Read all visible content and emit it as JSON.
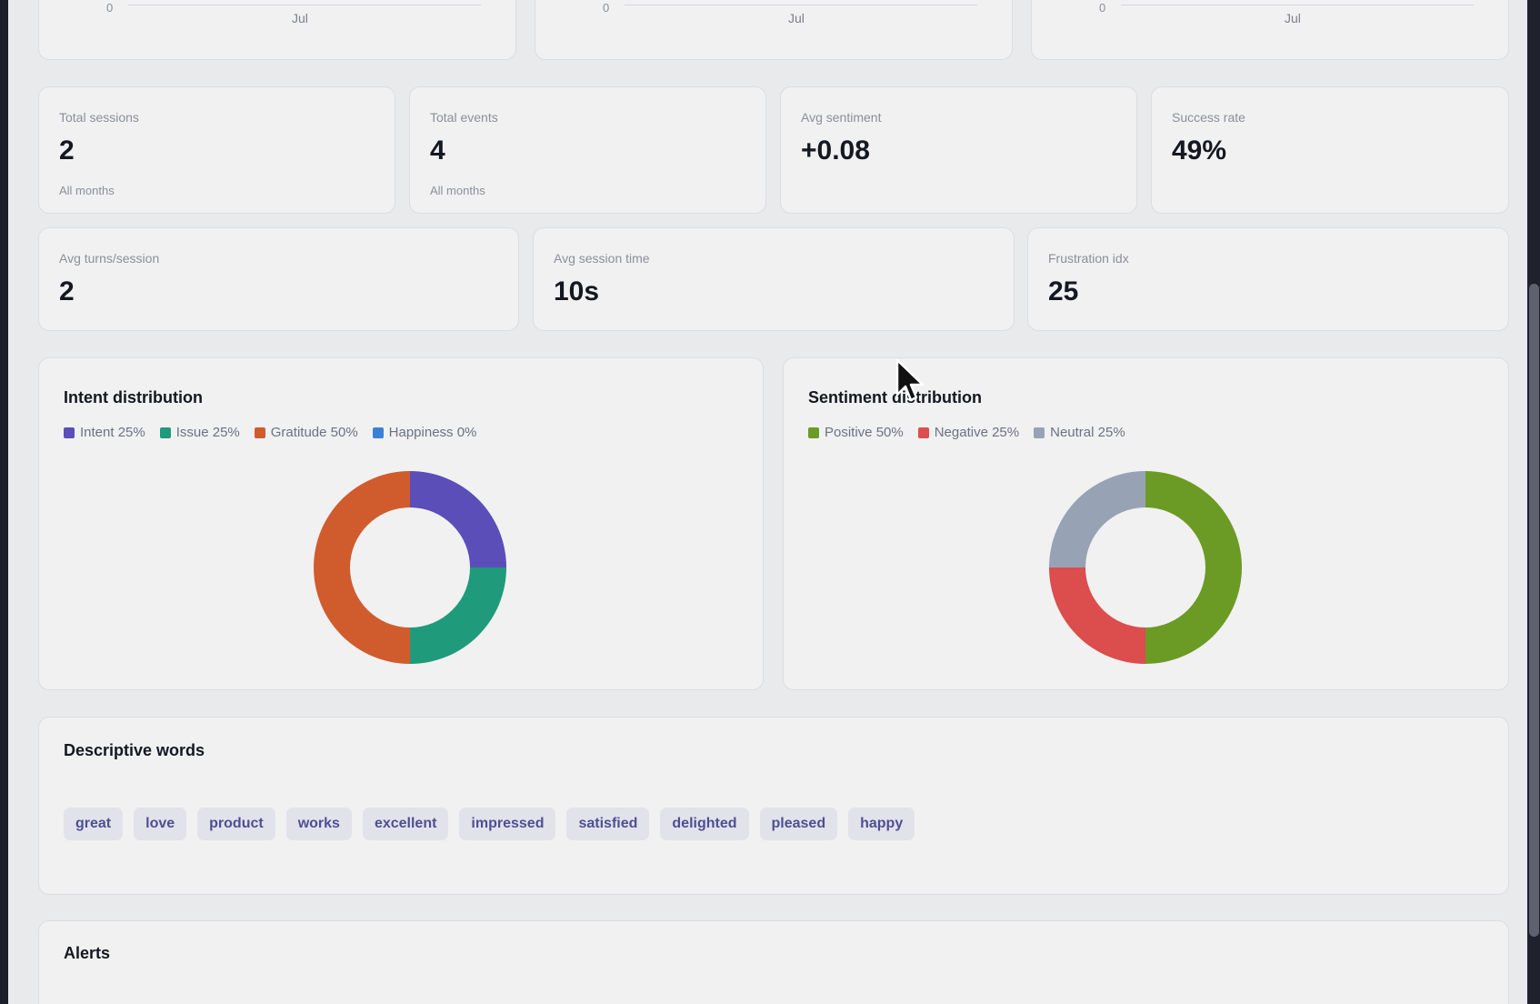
{
  "mini_charts": [
    {
      "zero_label": "0",
      "x_label": "Jul"
    },
    {
      "zero_label": "0",
      "x_label": "Jul"
    },
    {
      "zero_label": "0",
      "x_label": "Jul"
    }
  ],
  "stats_row1": [
    {
      "label": "Total sessions",
      "value": "2",
      "sub": "All months"
    },
    {
      "label": "Total events",
      "value": "4",
      "sub": "All months"
    },
    {
      "label": "Avg sentiment",
      "value": "+0.08",
      "sub": ""
    },
    {
      "label": "Success rate",
      "value": "49%",
      "sub": ""
    }
  ],
  "stats_row2": [
    {
      "label": "Avg turns/session",
      "value": "2"
    },
    {
      "label": "Avg session time",
      "value": "10s"
    },
    {
      "label": "Frustration idx",
      "value": "25"
    }
  ],
  "chart_data": [
    {
      "type": "pie",
      "title": "Intent distribution",
      "categories": [
        "Intent",
        "Issue",
        "Gratitude",
        "Happiness"
      ],
      "values": [
        25,
        25,
        50,
        0
      ],
      "legend_labels": [
        "Intent 25%",
        "Issue 25%",
        "Gratitude 50%",
        "Happiness 0%"
      ],
      "colors": [
        "#5b4eb8",
        "#1f9a7b",
        "#d05c2e",
        "#3b82d6"
      ],
      "legend_position": "top-left"
    },
    {
      "type": "pie",
      "title": "Sentiment distribution",
      "categories": [
        "Positive",
        "Negative",
        "Neutral"
      ],
      "values": [
        50,
        25,
        25
      ],
      "legend_labels": [
        "Positive 50%",
        "Negative 25%",
        "Neutral 25%"
      ],
      "colors": [
        "#6b9b24",
        "#dc4d4d",
        "#97a3b4"
      ],
      "legend_position": "top-left"
    }
  ],
  "descriptive_words": {
    "title": "Descriptive words",
    "words": [
      "great",
      "love",
      "product",
      "works",
      "excellent",
      "impressed",
      "satisfied",
      "delighted",
      "pleased",
      "happy"
    ]
  },
  "alerts": {
    "title": "Alerts"
  }
}
